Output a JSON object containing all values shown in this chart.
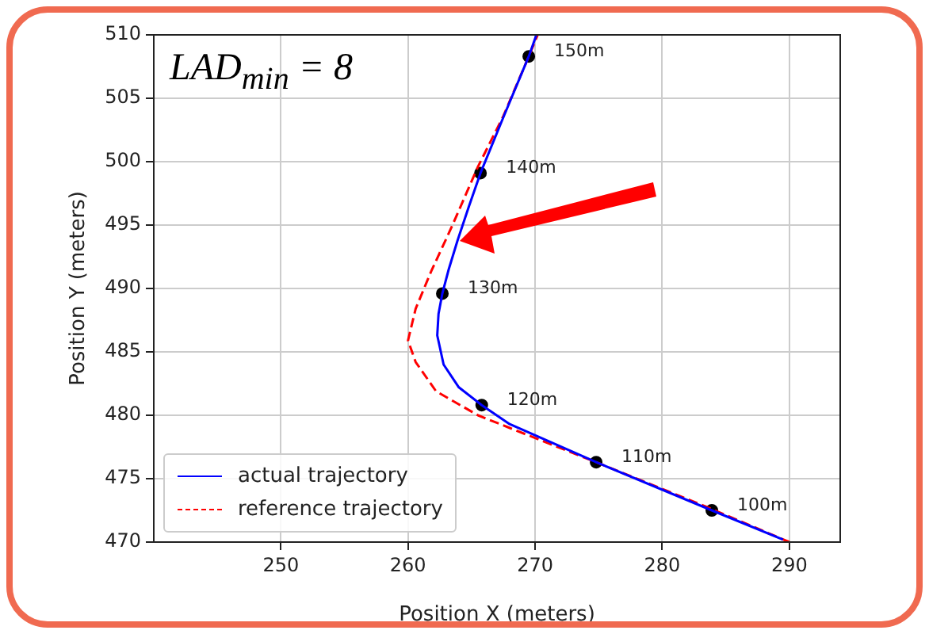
{
  "chart_data": {
    "type": "line",
    "xlabel": "Position X (meters)",
    "ylabel": "Position Y (meters)",
    "xlim": [
      240,
      294
    ],
    "xticks": [
      250,
      260,
      270,
      280,
      290
    ],
    "ylim": [
      470,
      510
    ],
    "yticks": [
      470,
      475,
      480,
      485,
      490,
      495,
      500,
      505,
      510
    ],
    "grid": true,
    "legend": "bottom left",
    "series": [
      {
        "name": "actual trajectory",
        "color": "#0000ff",
        "line_style": "solid",
        "marker": "none",
        "x": [
          289.5,
          283.9,
          274.8,
          268,
          265.8,
          264,
          262.8,
          262.3,
          262.4,
          262.7,
          263.2,
          263.9,
          264.8,
          265.7,
          267.5,
          269.5,
          270.1
        ],
        "values": [
          470.2,
          472.5,
          476.3,
          479.3,
          480.8,
          482.2,
          484,
          486.3,
          488,
          489.6,
          491.5,
          493.8,
          496.5,
          499.1,
          503.5,
          508.3,
          510
        ]
      },
      {
        "name": "reference trajectory",
        "color": "#ff0000",
        "line_style": "dashed",
        "marker": "none",
        "x": [
          290,
          283.9,
          274.8,
          268,
          265.5,
          262.2,
          260.6,
          260,
          260.6,
          261.8,
          263.5,
          265.5,
          267.5,
          269.5,
          270.2
        ],
        "values": [
          470,
          472.6,
          476.3,
          479,
          480,
          481.9,
          484.2,
          485.9,
          488.4,
          491.3,
          495,
          499.6,
          503.6,
          508.3,
          510
        ]
      },
      {
        "type": "scatter",
        "color": "#000000",
        "marker": "circle",
        "x": [
          283.9,
          274.8,
          265.8,
          262.7,
          265.7,
          269.5
        ],
        "values": [
          472.5,
          476.3,
          480.8,
          489.6,
          499.1,
          508.3
        ]
      }
    ],
    "annotations": [
      "LAD$_{min}$ = 8",
      {
        "text": "100m",
        "x": 283.9,
        "y": 472.5
      },
      {
        "text": "110m",
        "x": 274.8,
        "y": 476.3
      },
      {
        "text": "120m",
        "x": 265.8,
        "y": 480.8
      },
      {
        "text": "130m",
        "x": 262.7,
        "y": 489.6
      },
      {
        "text": "140m",
        "x": 265.7,
        "y": 499.1
      },
      {
        "text": "150m",
        "x": 269.5,
        "y": 508.3
      }
    ]
  }
}
